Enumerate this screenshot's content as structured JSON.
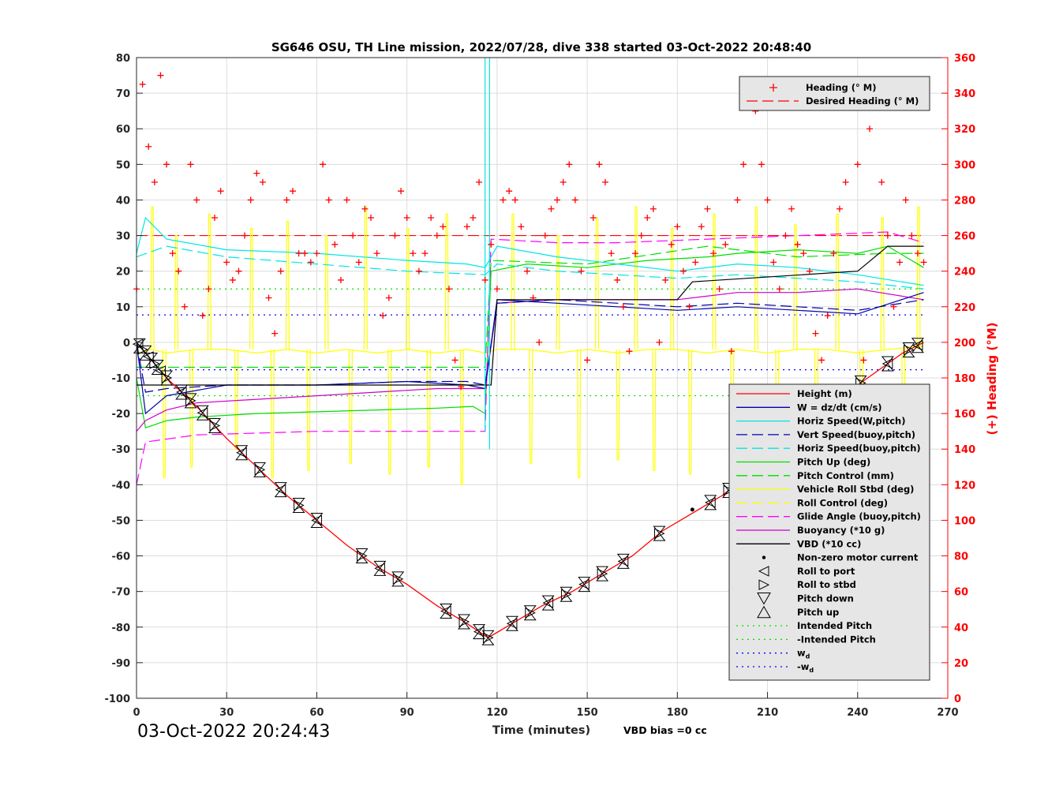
{
  "chart_data": {
    "type": "line",
    "title": "SG646 OSU, TH Line mission, 2022/07/28, dive 338 started 03-Oct-2022 20:48:40",
    "xlabel": "Time (minutes)",
    "ylabel_right": "(+) Heading (°M)",
    "xlim": [
      0,
      270
    ],
    "ylim": [
      -100,
      80
    ],
    "ylim_right": [
      0,
      360
    ],
    "xticks": [
      0,
      30,
      60,
      90,
      120,
      150,
      180,
      210,
      240,
      270
    ],
    "yticks": [
      -100,
      -90,
      -80,
      -70,
      -60,
      -50,
      -40,
      -30,
      -20,
      -10,
      0,
      10,
      20,
      30,
      40,
      50,
      60,
      70,
      80
    ],
    "yticks_right": [
      0,
      20,
      40,
      60,
      80,
      100,
      120,
      140,
      160,
      180,
      200,
      220,
      240,
      260,
      280,
      300,
      320,
      340,
      360
    ],
    "grid": true,
    "footer_left": "03-Oct-2022 20:24:43",
    "footer_note": "VBD bias =0 cc",
    "heading_legend": [
      {
        "label": "Heading (° M)",
        "color": "#ff0000",
        "style": "plus"
      },
      {
        "label": "Desired Heading (° M)",
        "color": "#ff0000",
        "style": "dash"
      }
    ],
    "legend": [
      {
        "label": "Height (m)",
        "color": "#ff0000",
        "style": "solid"
      },
      {
        "label": "W = dz/dt (cm/s)",
        "color": "#0000aa",
        "style": "solid"
      },
      {
        "label": "Horiz Speed(W,pitch)",
        "color": "#00e5e5",
        "style": "solid"
      },
      {
        "label": "Vert Speed(buoy,pitch)",
        "color": "#0000aa",
        "style": "dash"
      },
      {
        "label": "Horiz Speed(buoy,pitch)",
        "color": "#00e5e5",
        "style": "dash"
      },
      {
        "label": "Pitch Up (deg)",
        "color": "#00dd00",
        "style": "solid"
      },
      {
        "label": "Pitch Control (mm)",
        "color": "#00dd00",
        "style": "dash"
      },
      {
        "label": "Vehicle Roll Stbd (deg)",
        "color": "#ffff00",
        "style": "solid"
      },
      {
        "label": "Roll Control (deg)",
        "color": "#ffff00",
        "style": "dash"
      },
      {
        "label": "Glide Angle (buoy,pitch)",
        "color": "#ff00ff",
        "style": "dash"
      },
      {
        "label": "Buoyancy (*10 g)",
        "color": "#cc00cc",
        "style": "solid"
      },
      {
        "label": "VBD (*10 cc)",
        "color": "#000000",
        "style": "solid"
      },
      {
        "label": "Non-zero motor current",
        "color": "#000000",
        "style": "dot"
      },
      {
        "label": "Roll to port",
        "color": "#000000",
        "style": "tri-left"
      },
      {
        "label": "Roll to stbd",
        "color": "#000000",
        "style": "tri-right"
      },
      {
        "label": "Pitch down",
        "color": "#000000",
        "style": "tri-down"
      },
      {
        "label": "Pitch up",
        "color": "#000000",
        "style": "tri-up"
      },
      {
        "label": "Intended Pitch",
        "color": "#00dd00",
        "style": "dotted"
      },
      {
        "label": "-Intended Pitch",
        "color": "#00dd00",
        "style": "dotted"
      },
      {
        "label": "w",
        "sub": "d",
        "color": "#0000ff",
        "style": "dotted"
      },
      {
        "label": "-w",
        "sub": "d",
        "color": "#0000ff",
        "style": "dotted"
      }
    ],
    "reference_lines": {
      "intended_pitch": 15,
      "neg_intended_pitch": -15,
      "wd": 7.7,
      "neg_wd": -7.7,
      "desired_heading": 260
    },
    "depth_profile": {
      "x": [
        0,
        10,
        20,
        30,
        40,
        50,
        60,
        70,
        80,
        90,
        100,
        110,
        117,
        125,
        135,
        145,
        155,
        165,
        175,
        185,
        195,
        205,
        215,
        225,
        235,
        245,
        255,
        262
      ],
      "y": [
        0,
        -10,
        -18,
        -27,
        -35,
        -43,
        -50,
        -57,
        -63,
        -68,
        -74,
        -79,
        -83,
        -79,
        -74,
        -70,
        -65,
        -60,
        -53,
        -48,
        -43,
        -36,
        -28,
        -21,
        -15,
        -9,
        -3,
        0
      ]
    },
    "pitch_markers": {
      "x": [
        1,
        3,
        5,
        7,
        10,
        15,
        18,
        22,
        26,
        35,
        41,
        48,
        54,
        60,
        75,
        81,
        87,
        103,
        109,
        114,
        117,
        125,
        131,
        137,
        143,
        149,
        155,
        162,
        174,
        191,
        197,
        204,
        214,
        222,
        229,
        236,
        241,
        250,
        257,
        260
      ]
    },
    "roll_markers": {
      "x": [
        0.5,
        2,
        4,
        6,
        8,
        10,
        15,
        18,
        22,
        26,
        35,
        41,
        48,
        54,
        60,
        75,
        81,
        87,
        103,
        109,
        114,
        117,
        125,
        131,
        137,
        143,
        149,
        155,
        162,
        174,
        191,
        197,
        204,
        214,
        222,
        229,
        236,
        241,
        250,
        257,
        260
      ]
    },
    "motor_current_points": {
      "x": [
        185
      ],
      "y": [
        -47
      ]
    },
    "pitch_up_deg": {
      "x": [
        0,
        3,
        10,
        20,
        40,
        60,
        80,
        100,
        112,
        116,
        118,
        130,
        150,
        170,
        190,
        200,
        220,
        240,
        250,
        262
      ],
      "y": [
        -10,
        -24,
        -22,
        -21,
        -20,
        -19.5,
        -19,
        -18.5,
        -18,
        -20,
        20,
        22,
        21,
        23,
        24,
        25,
        26,
        25,
        27,
        21
      ]
    },
    "pitch_control_mm": {
      "x": [
        0,
        10,
        40,
        80,
        112,
        116,
        118,
        150,
        190,
        220,
        250,
        262
      ],
      "y": [
        -7,
        -7,
        -7,
        -7,
        -7,
        -7,
        23,
        22,
        27,
        24,
        25,
        25
      ]
    },
    "vert_speed_w": {
      "x": [
        0,
        3,
        10,
        30,
        60,
        90,
        110,
        116,
        120,
        140,
        160,
        180,
        200,
        220,
        240,
        262
      ],
      "y": [
        0,
        -20,
        -15,
        -12,
        -12,
        -11,
        -12,
        -13,
        12,
        11,
        10,
        9,
        10,
        9,
        8,
        14
      ]
    },
    "vert_speed_buoy": {
      "x": [
        0,
        3,
        10,
        30,
        60,
        90,
        110,
        116,
        120,
        140,
        160,
        180,
        200,
        220,
        240,
        262
      ],
      "y": [
        0,
        -14,
        -13,
        -12,
        -12,
        -11,
        -11,
        -12,
        11,
        12,
        11,
        10,
        11,
        10,
        9,
        12
      ]
    },
    "horiz_speed_w": {
      "x": [
        0,
        3,
        10,
        30,
        60,
        90,
        110,
        116,
        120,
        140,
        160,
        180,
        200,
        220,
        240,
        262
      ],
      "y": [
        25,
        35,
        29,
        26,
        25,
        23,
        22,
        21,
        27,
        24,
        22,
        20,
        22,
        21,
        19,
        16
      ]
    },
    "horiz_speed_buoy": {
      "x": [
        0,
        10,
        30,
        60,
        90,
        116,
        120,
        140,
        160,
        180,
        200,
        220,
        240,
        262
      ],
      "y": [
        24,
        27,
        24,
        22,
        20,
        19,
        22,
        20,
        19,
        18,
        19,
        18,
        17,
        15
      ]
    },
    "glide_angle": {
      "x": [
        0,
        3,
        20,
        60,
        100,
        116,
        118,
        140,
        160,
        190,
        220,
        250,
        262
      ],
      "y": [
        -40,
        -28,
        -26,
        -25,
        -25,
        -25,
        29,
        28,
        28,
        29,
        30,
        31,
        28
      ]
    },
    "buoyancy": {
      "x": [
        0,
        3,
        10,
        20,
        40,
        60,
        80,
        100,
        116,
        120,
        140,
        160,
        180,
        200,
        220,
        240,
        262
      ],
      "y": [
        -25,
        -22,
        -19,
        -17,
        -16,
        -15,
        -14,
        -13,
        -13,
        11,
        12,
        12,
        12,
        14,
        14,
        15,
        12
      ]
    },
    "vbd": {
      "x": [
        0,
        3,
        10,
        118,
        120,
        138,
        180,
        185,
        240,
        250,
        262
      ],
      "y": [
        -12,
        -12,
        -12,
        -12,
        12,
        12,
        12,
        17,
        20,
        27,
        27
      ]
    },
    "roll_deg": {
      "x": [
        0,
        5,
        10,
        20,
        30,
        40,
        50,
        60,
        70,
        80,
        90,
        100,
        110,
        116,
        120,
        130,
        140,
        150,
        160,
        170,
        180,
        190,
        200,
        210,
        220,
        230,
        240,
        250,
        262
      ],
      "y": [
        -3,
        -2,
        -3,
        -2,
        -2,
        -3,
        -2,
        -3,
        -2,
        -3,
        -2,
        -3,
        -2,
        -3,
        -2,
        -2,
        -3,
        -2,
        -3,
        -2,
        -2,
        -3,
        -2,
        -3,
        -2,
        -2,
        -3,
        -2,
        -1
      ]
    },
    "roll_spikes": {
      "x": [
        5,
        9,
        13,
        18,
        24,
        33,
        38,
        45,
        50,
        57,
        63,
        71,
        76,
        84,
        90,
        97,
        103,
        108,
        125,
        131,
        140,
        147,
        153,
        160,
        166,
        172,
        178,
        184,
        192,
        198,
        206,
        213,
        219,
        226,
        233,
        241,
        248,
        255,
        260
      ],
      "y": [
        38,
        -38,
        30,
        -35,
        36,
        -30,
        32,
        -38,
        34,
        -36,
        30,
        -34,
        38,
        -37,
        32,
        -35,
        36,
        -40,
        36,
        -34,
        30,
        -38,
        35,
        -33,
        38,
        -36,
        32,
        -37,
        36,
        -34,
        38,
        -35,
        33,
        -37,
        36,
        -38,
        35,
        -32,
        38
      ]
    },
    "heading": {
      "x": [
        0,
        2,
        4,
        6,
        8,
        10,
        12,
        14,
        16,
        18,
        20,
        22,
        24,
        26,
        28,
        30,
        32,
        34,
        36,
        38,
        40,
        42,
        44,
        46,
        48,
        50,
        52,
        54,
        56,
        58,
        60,
        62,
        64,
        66,
        68,
        70,
        72,
        74,
        76,
        78,
        80,
        82,
        84,
        86,
        88,
        90,
        92,
        94,
        96,
        98,
        100,
        102,
        104,
        106,
        108,
        110,
        112,
        114,
        116,
        118,
        120,
        122,
        124,
        126,
        128,
        130,
        132,
        134,
        136,
        138,
        140,
        142,
        144,
        146,
        148,
        150,
        152,
        154,
        156,
        158,
        160,
        162,
        164,
        166,
        168,
        170,
        172,
        174,
        176,
        178,
        180,
        182,
        184,
        186,
        188,
        190,
        192,
        194,
        196,
        198,
        200,
        202,
        204,
        206,
        208,
        210,
        212,
        214,
        216,
        218,
        220,
        222,
        224,
        226,
        228,
        230,
        232,
        234,
        236,
        238,
        240,
        242,
        244,
        246,
        248,
        250,
        252,
        254,
        256,
        258,
        260,
        262
      ],
      "y": [
        230,
        345,
        310,
        290,
        350,
        300,
        250,
        240,
        220,
        300,
        280,
        215,
        230,
        270,
        285,
        245,
        235,
        240,
        260,
        280,
        295,
        290,
        225,
        205,
        240,
        280,
        285,
        250,
        250,
        245,
        250,
        300,
        280,
        255,
        235,
        280,
        260,
        245,
        275,
        270,
        250,
        215,
        225,
        260,
        285,
        270,
        250,
        240,
        250,
        270,
        260,
        265,
        230,
        190,
        175,
        265,
        270,
        290,
        235,
        255,
        230,
        280,
        285,
        280,
        265,
        240,
        225,
        200,
        260,
        275,
        280,
        290,
        300,
        280,
        240,
        190,
        270,
        300,
        290,
        250,
        235,
        220,
        195,
        250,
        260,
        270,
        275,
        200,
        235,
        255,
        265,
        240,
        220,
        245,
        265,
        275,
        250,
        230,
        255,
        195,
        280,
        300,
        345,
        330,
        300,
        280,
        245,
        230,
        260,
        275,
        255,
        250,
        240,
        205,
        190,
        215,
        250,
        275,
        290,
        340,
        300,
        190,
        320,
        340,
        290,
        260,
        220,
        245,
        280,
        260,
        250,
        245
      ]
    }
  }
}
